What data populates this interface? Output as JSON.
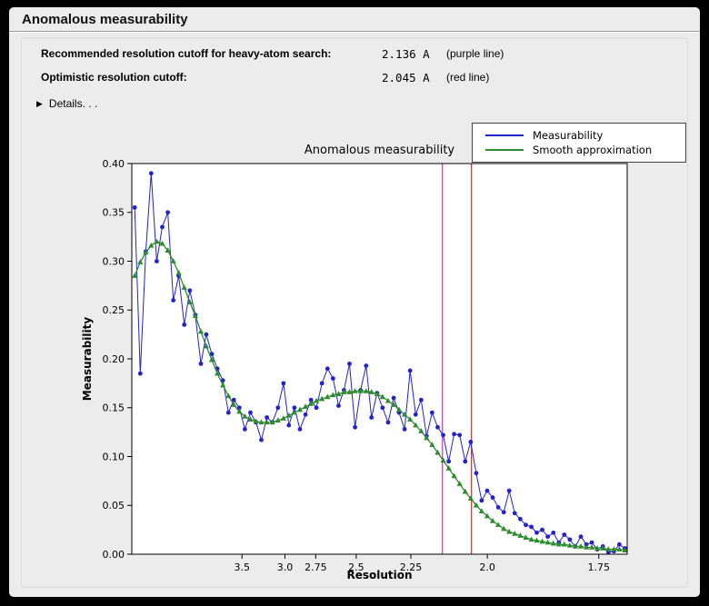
{
  "panel": {
    "title": "Anomalous measurability"
  },
  "info": {
    "rows": [
      {
        "label": "Recommended resolution cutoff for heavy-atom search:",
        "value": "2.136 A",
        "note": "(purple line)"
      },
      {
        "label": "Optimistic resolution cutoff:",
        "value": "2.045 A",
        "note": "(red line)"
      }
    ],
    "details_label": "Details. . .",
    "disclosure_icon": "▶"
  },
  "chart_data": {
    "type": "line",
    "title": "Anomalous measurability",
    "xlabel": "Resolution",
    "ylabel": "Measurability",
    "x_scale": "1/d^2",
    "xlim": [
      0.006,
      0.346
    ],
    "ylim": [
      0.0,
      0.4
    ],
    "grid": false,
    "y_ticks": [
      {
        "value": 0.0,
        "label": "0.00"
      },
      {
        "value": 0.05,
        "label": "0.05"
      },
      {
        "value": 0.1,
        "label": "0.10"
      },
      {
        "value": 0.15,
        "label": "0.15"
      },
      {
        "value": 0.2,
        "label": "0.20"
      },
      {
        "value": 0.25,
        "label": "0.25"
      },
      {
        "value": 0.3,
        "label": "0.30"
      },
      {
        "value": 0.35,
        "label": "0.35"
      },
      {
        "value": 0.4,
        "label": "0.40"
      }
    ],
    "x_ticks": [
      {
        "s": 0.08163,
        "label": "3.5"
      },
      {
        "s": 0.11111,
        "label": "3.0"
      },
      {
        "s": 0.13223,
        "label": "2.75"
      },
      {
        "s": 0.16,
        "label": "2.5"
      },
      {
        "s": 0.19753,
        "label": "2.25"
      },
      {
        "s": 0.25,
        "label": "2.0"
      },
      {
        "s": 0.32653,
        "label": "1.75"
      }
    ],
    "vlines": [
      {
        "s": 0.21918,
        "color": "#aa44aa",
        "name": "purple line",
        "resolution": "2.136 A"
      },
      {
        "s": 0.23912,
        "color": "#aa3939",
        "name": "red line",
        "resolution": "2.045 A"
      }
    ],
    "legend": {
      "position": "top-right",
      "entries": [
        {
          "label": "Measurability",
          "color": "#2323cc"
        },
        {
          "label": "Smooth approximation",
          "color": "#2e8b2e"
        }
      ]
    },
    "x": [
      0.008,
      0.0118,
      0.0156,
      0.0193,
      0.0231,
      0.0269,
      0.0307,
      0.0345,
      0.0382,
      0.042,
      0.0458,
      0.0496,
      0.0534,
      0.0571,
      0.0609,
      0.0647,
      0.0685,
      0.0723,
      0.076,
      0.0798,
      0.0836,
      0.0874,
      0.0912,
      0.0949,
      0.0987,
      0.1025,
      0.1063,
      0.1101,
      0.1138,
      0.1176,
      0.1214,
      0.1252,
      0.129,
      0.1327,
      0.1365,
      0.1403,
      0.1441,
      0.1479,
      0.1516,
      0.1554,
      0.1592,
      0.163,
      0.1668,
      0.1705,
      0.1743,
      0.1781,
      0.1819,
      0.1857,
      0.1894,
      0.1932,
      0.197,
      0.2008,
      0.2046,
      0.2083,
      0.2121,
      0.2159,
      0.2197,
      0.2235,
      0.2272,
      0.231,
      0.2348,
      0.2386,
      0.2424,
      0.2461,
      0.2499,
      0.2537,
      0.2575,
      0.2613,
      0.265,
      0.2688,
      0.2726,
      0.2764,
      0.2802,
      0.2839,
      0.2877,
      0.2915,
      0.2953,
      0.2991,
      0.3028,
      0.3066,
      0.3104,
      0.3142,
      0.318,
      0.3217,
      0.3255,
      0.3293,
      0.3331,
      0.3369,
      0.3406,
      0.3444
    ],
    "series": [
      {
        "name": "Measurability",
        "color": "#2323cc",
        "marker": "circle",
        "values": [
          0.355,
          0.185,
          0.31,
          0.39,
          0.3,
          0.335,
          0.35,
          0.26,
          0.285,
          0.235,
          0.27,
          0.245,
          0.195,
          0.225,
          0.205,
          0.19,
          0.178,
          0.145,
          0.158,
          0.15,
          0.128,
          0.145,
          0.135,
          0.117,
          0.14,
          0.135,
          0.15,
          0.175,
          0.132,
          0.15,
          0.128,
          0.143,
          0.158,
          0.15,
          0.175,
          0.19,
          0.18,
          0.152,
          0.168,
          0.195,
          0.13,
          0.168,
          0.193,
          0.14,
          0.165,
          0.15,
          0.135,
          0.16,
          0.145,
          0.128,
          0.188,
          0.143,
          0.158,
          0.121,
          0.145,
          0.13,
          0.122,
          0.095,
          0.123,
          0.122,
          0.095,
          0.115,
          0.083,
          0.055,
          0.065,
          0.058,
          0.048,
          0.043,
          0.065,
          0.042,
          0.036,
          0.03,
          0.028,
          0.022,
          0.025,
          0.018,
          0.022,
          0.012,
          0.02,
          0.015,
          0.008,
          0.018,
          0.01,
          0.012,
          0.005,
          0.008,
          0.002,
          0.003,
          0.01,
          0.006
        ]
      },
      {
        "name": "Smooth approximation",
        "color": "#2e8b2e",
        "marker": "triangle",
        "values": [
          0.285,
          0.299,
          0.309,
          0.316,
          0.32,
          0.318,
          0.311,
          0.3,
          0.288,
          0.273,
          0.258,
          0.244,
          0.228,
          0.213,
          0.199,
          0.185,
          0.173,
          0.162,
          0.153,
          0.146,
          0.141,
          0.138,
          0.136,
          0.135,
          0.135,
          0.135,
          0.137,
          0.139,
          0.142,
          0.145,
          0.148,
          0.151,
          0.154,
          0.157,
          0.159,
          0.161,
          0.163,
          0.164,
          0.166,
          0.166,
          0.167,
          0.167,
          0.167,
          0.166,
          0.164,
          0.161,
          0.157,
          0.153,
          0.148,
          0.143,
          0.138,
          0.132,
          0.126,
          0.119,
          0.112,
          0.104,
          0.096,
          0.088,
          0.08,
          0.072,
          0.064,
          0.057,
          0.05,
          0.044,
          0.039,
          0.034,
          0.03,
          0.026,
          0.023,
          0.021,
          0.019,
          0.017,
          0.015,
          0.014,
          0.013,
          0.012,
          0.011,
          0.01,
          0.01,
          0.009,
          0.008,
          0.008,
          0.007,
          0.007,
          0.006,
          0.006,
          0.005,
          0.005,
          0.005,
          0.004
        ]
      }
    ]
  }
}
